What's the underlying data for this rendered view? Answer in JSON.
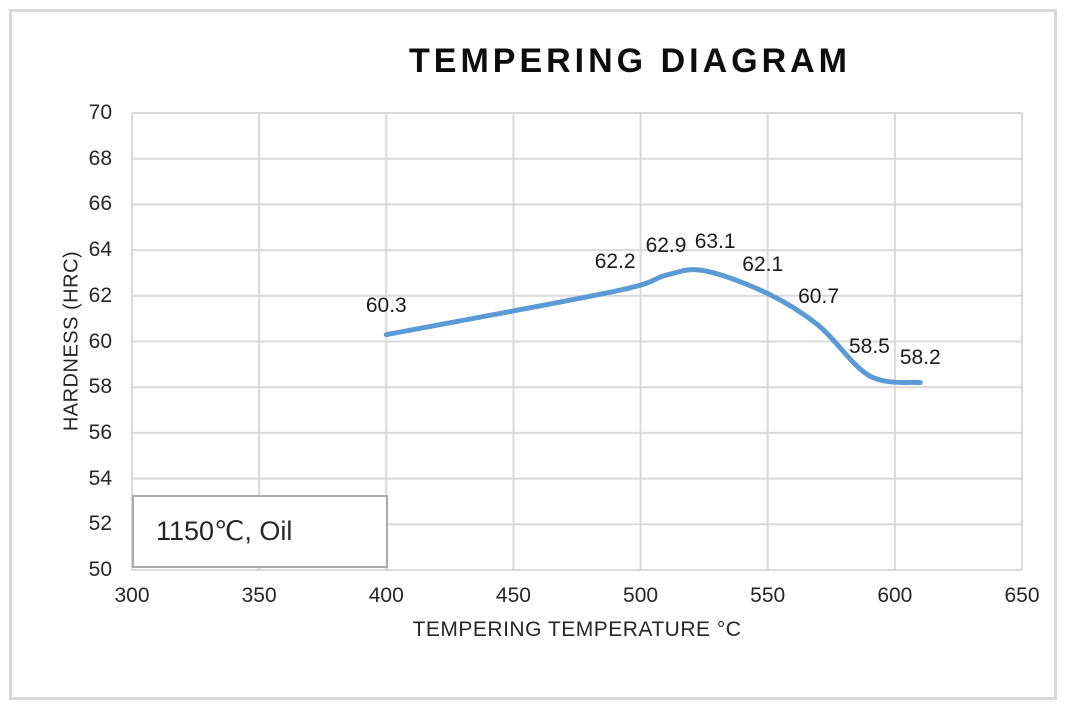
{
  "chart": {
    "title": "TEMPERING DIAGRAM",
    "legend_label": "1150℃, Oil",
    "colors": {
      "series_line": "#5b9bd5",
      "gridline": "#d9d9d9",
      "frame_border": "#d9d9d9",
      "text": "#262626"
    }
  },
  "chart_data": {
    "type": "line",
    "title": "TEMPERING DIAGRAM",
    "xlabel": "TEMPERING TEMPERATURE °C",
    "ylabel": "HARDNESS (HRC)",
    "x": [
      400,
      490,
      510,
      525,
      550,
      570,
      590,
      610
    ],
    "y": [
      60.3,
      62.2,
      62.9,
      63.1,
      62.1,
      60.7,
      58.5,
      58.2
    ],
    "data_labels": [
      "60.3",
      "62.2",
      "62.9",
      "63.1",
      "62.1",
      "60.7",
      "58.5",
      "58.2"
    ],
    "xlim": [
      300,
      650
    ],
    "xstep": 50,
    "x_ticks": [
      "300",
      "350",
      "400",
      "450",
      "500",
      "550",
      "600",
      "650"
    ],
    "ylim": [
      50,
      70
    ],
    "ystep": 2,
    "y_ticks": [
      "50",
      "52",
      "54",
      "56",
      "58",
      "60",
      "62",
      "64",
      "66",
      "68",
      "70"
    ],
    "grid": true,
    "line_smooth": true,
    "annotation": "1150℃, Oil",
    "legend_position": "bottom-left-inside"
  }
}
